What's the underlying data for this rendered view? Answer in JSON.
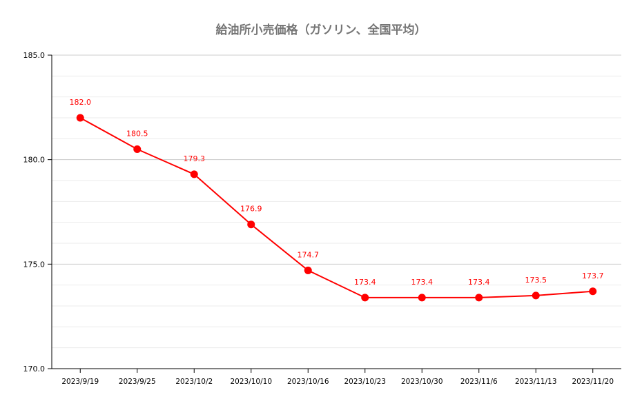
{
  "chart_data": {
    "type": "line",
    "title": "給油所小売価格（ガソリン、全国平均）",
    "xlabel": "",
    "ylabel": "",
    "categories": [
      "2023/9/19",
      "2023/9/25",
      "2023/10/2",
      "2023/10/10",
      "2023/10/16",
      "2023/10/23",
      "2023/10/30",
      "2023/11/6",
      "2023/11/13",
      "2023/11/20"
    ],
    "values": [
      182.0,
      180.5,
      179.3,
      176.9,
      174.7,
      173.4,
      173.4,
      173.4,
      173.5,
      173.7
    ],
    "data_labels": [
      "182.0",
      "180.5",
      "179.3",
      "176.9",
      "174.7",
      "173.4",
      "173.4",
      "173.4",
      "173.5",
      "173.7"
    ],
    "ylim": [
      170,
      185
    ],
    "yticks": [
      "170.0",
      "175.0",
      "180.0",
      "185.0"
    ],
    "ytick_values": [
      170,
      175,
      180,
      185
    ],
    "minor_grid_step": 1,
    "grid": true,
    "legend": "none",
    "colors": {
      "series": "#ff0000",
      "title": "#757575",
      "major_grid": "#cccccc",
      "minor_grid": "#ebebeb"
    }
  }
}
